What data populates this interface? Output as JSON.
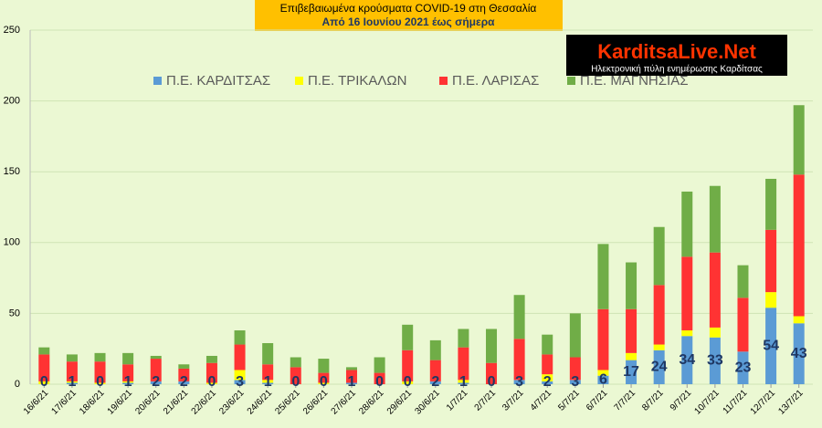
{
  "chart_data": {
    "type": "stacked-bar",
    "title": "Επιβεβαιωμένα κρούσματα COVID-19 στη Θεσσαλία",
    "subtitle": "Από 16 Ιουνίου 2021 έως σήμερα",
    "categories": [
      "16/6/21",
      "17/6/21",
      "18/6/21",
      "19/6/21",
      "20/6/21",
      "21/6/21",
      "22/6/21",
      "23/6/21",
      "24/6/21",
      "25/6/21",
      "26/6/21",
      "27/6/21",
      "28/6/21",
      "29/6/21",
      "30/6/21",
      "1/7/21",
      "2/7/21",
      "3/7/21",
      "4/7/21",
      "5/7/21",
      "6/7/21",
      "7/7/21",
      "8/7/21",
      "9/7/21",
      "10/7/21",
      "11/7/21",
      "12/7/21",
      "13/7/21"
    ],
    "series": [
      {
        "name": "Π.Ε. ΚΑΡΔΙΤΣΑΣ",
        "color": "#5b9bd5",
        "values": [
          0,
          1,
          0,
          1,
          2,
          2,
          0,
          3,
          1,
          0,
          0,
          1,
          0,
          0,
          2,
          1,
          0,
          3,
          2,
          3,
          6,
          17,
          24,
          34,
          33,
          23,
          54,
          43
        ],
        "show_labels": true
      },
      {
        "name": "Π.Ε. ΤΡΙΚΑΛΩΝ",
        "color": "#ffff00",
        "values": [
          2,
          1,
          1,
          1,
          0,
          0,
          1,
          7,
          2,
          0,
          1,
          0,
          0,
          2,
          0,
          2,
          0,
          0,
          5,
          0,
          4,
          5,
          4,
          4,
          7,
          0,
          11,
          5
        ]
      },
      {
        "name": "Π.Ε. ΛΑΡΙΣΑΣ",
        "color": "#ff3333",
        "values": [
          19,
          14,
          15,
          12,
          16,
          9,
          14,
          18,
          11,
          12,
          7,
          9,
          8,
          22,
          15,
          23,
          15,
          29,
          14,
          16,
          43,
          31,
          42,
          52,
          53,
          38,
          44,
          100
        ]
      },
      {
        "name": "Π.Ε. ΜΑΓΝΗΣΙΑΣ",
        "color": "#70ad47",
        "values": [
          5,
          5,
          6,
          8,
          2,
          3,
          5,
          10,
          15,
          7,
          10,
          2,
          11,
          18,
          14,
          13,
          24,
          31,
          14,
          31,
          46,
          33,
          41,
          46,
          47,
          23,
          36,
          49
        ]
      }
    ],
    "ylim": [
      0,
      250
    ],
    "yticks": [
      0,
      50,
      100,
      150,
      200,
      250
    ],
    "grid": true
  },
  "logo": {
    "name": "KarditsaLive.Net",
    "tagline": "Ηλεκτρονική πύλη ενημέρωσης Καρδίτσας"
  }
}
